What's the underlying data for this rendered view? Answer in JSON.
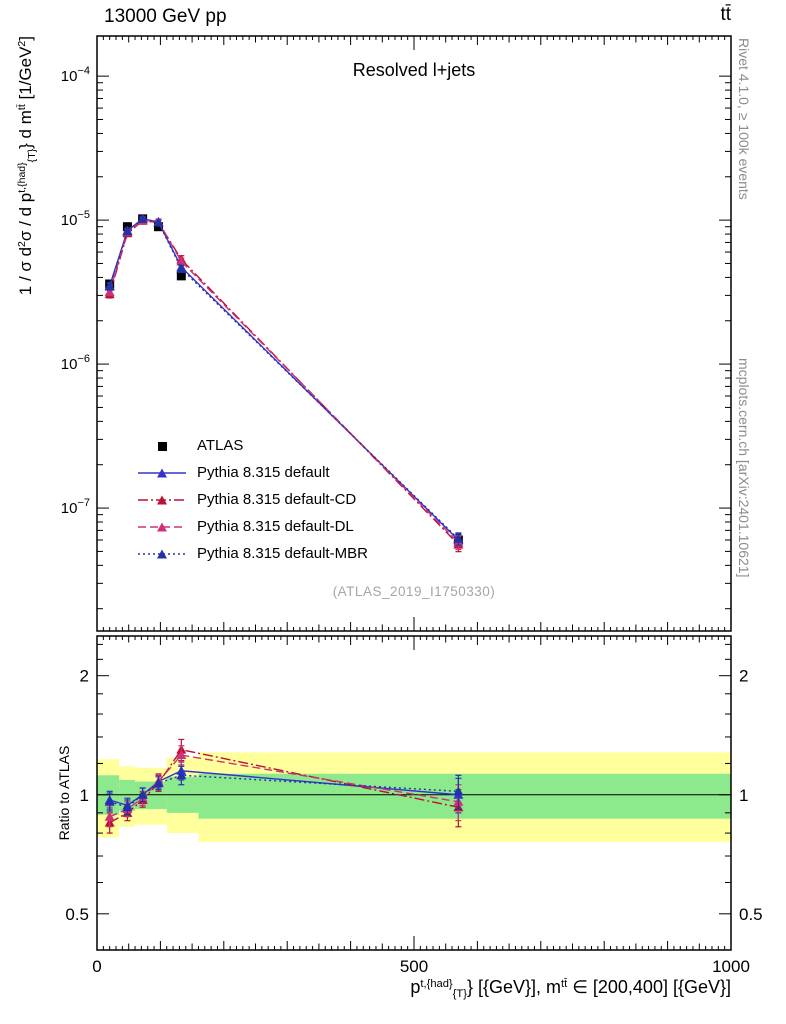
{
  "header": {
    "left_title": "13000 GeV pp",
    "right_title": "tt̄"
  },
  "panel": {
    "watermark": "(ATLAS_2019_I1750330)"
  },
  "side": {
    "top": "Rivet 4.1.0, ≥ 100k events",
    "bottom": "mcplots.cern.ch [arXiv:2401.10621]"
  },
  "ratio_ylabel": "Ratio to ATLAS",
  "ylabel_parts": {
    "a": "1 / σ d",
    "b": "2",
    "c": "σ / d p",
    "d": "t,{had}",
    "e": "{T}",
    "f": "} d m",
    "g": "tt̄",
    "h": " [1/GeV",
    "i": "2",
    "j": "]"
  },
  "xlabel_parts": {
    "a": "p",
    "b": "t,{had}",
    "c": "{T}",
    "d": "} [{GeV}], m",
    "e": "tt̄",
    "f": " ∈ [200,400] [{GeV}]"
  },
  "chart_data": {
    "type": "line",
    "title": "Resolved l+jets",
    "x_range": [
      0,
      1000
    ],
    "y_range": [
      1.4e-08,
      0.00019
    ],
    "ratio_range": [
      0.405,
      2.52
    ],
    "x_ticks": {
      "labels": [
        "0",
        "500",
        "1000"
      ],
      "values": [
        0,
        500,
        1000
      ]
    },
    "y_ticks": [
      {
        "value": 0.0001,
        "base": "10",
        "exp": "−4"
      },
      {
        "value": 1e-05,
        "base": "10",
        "exp": "−5"
      },
      {
        "value": 1e-06,
        "base": "10",
        "exp": "−6"
      },
      {
        "value": 1e-07,
        "base": "10",
        "exp": "−7"
      }
    ],
    "ratio_ticks": {
      "labels": [
        "2",
        "1",
        "0.5"
      ],
      "values": [
        2,
        1,
        0.5
      ]
    },
    "x": [
      20,
      48,
      72,
      97,
      133,
      570
    ],
    "bin_edges": [
      0,
      35,
      60,
      85,
      110,
      160,
      1000
    ],
    "atlas": {
      "name": "ATLAS",
      "color": "#000000",
      "marker": "square",
      "values": [
        3.6e-06,
        9e-06,
        1.02e-05,
        9e-06,
        4.1e-06,
        6e-08
      ],
      "rel_err": [
        0.05,
        0.03,
        0.03,
        0.03,
        0.05,
        0.09
      ]
    },
    "series": [
      {
        "name": "Pythia 8.315 default",
        "color": "#3333cc",
        "dash": "solid",
        "marker": "triangle",
        "ratio": [
          0.97,
          0.94,
          1.0,
          1.08,
          1.15,
          1.0
        ],
        "ratio_err": [
          0.05,
          0.04,
          0.04,
          0.04,
          0.06,
          0.1
        ]
      },
      {
        "name": "Pythia 8.315 default-CD",
        "color": "#bb1133",
        "dash": "dashdot",
        "marker": "triangle",
        "ratio": [
          0.85,
          0.9,
          0.97,
          1.07,
          1.3,
          0.93
        ],
        "ratio_err": [
          0.05,
          0.04,
          0.04,
          0.05,
          0.08,
          0.1
        ]
      },
      {
        "name": "Pythia 8.315 default-DL",
        "color": "#cc3377",
        "dash": "dashed",
        "marker": "triangle",
        "ratio": [
          0.88,
          0.92,
          0.98,
          1.08,
          1.26,
          0.96
        ],
        "ratio_err": [
          0.05,
          0.04,
          0.04,
          0.05,
          0.07,
          0.1
        ]
      },
      {
        "name": "Pythia 8.315 default-MBR",
        "color": "#2233aa",
        "dash": "dotted",
        "marker": "triangle",
        "ratio": [
          0.96,
          0.93,
          1.0,
          1.07,
          1.12,
          1.02
        ],
        "ratio_err": [
          0.05,
          0.04,
          0.04,
          0.04,
          0.06,
          0.1
        ]
      }
    ],
    "bands": {
      "edges": [
        0,
        35,
        60,
        85,
        110,
        160,
        1000
      ],
      "yellow_lo": [
        0.78,
        0.83,
        0.84,
        0.84,
        0.8,
        0.76
      ],
      "yellow_hi": [
        1.23,
        1.18,
        1.17,
        1.17,
        1.24,
        1.28
      ],
      "green_lo": [
        0.89,
        0.91,
        0.92,
        0.92,
        0.9,
        0.87
      ],
      "green_hi": [
        1.12,
        1.09,
        1.08,
        1.08,
        1.11,
        1.13
      ],
      "yellow_color": "#ffff9c",
      "green_color": "#8ce98c"
    }
  }
}
